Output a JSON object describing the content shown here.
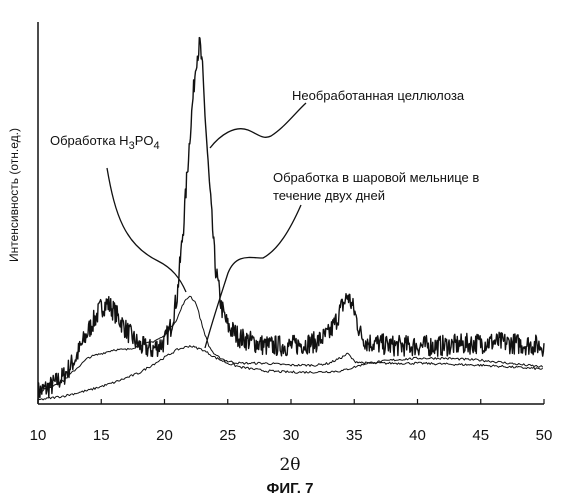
{
  "chart_data": {
    "type": "line",
    "x_label": "2θ",
    "y_label": "Интенсивность (отн.ед.)",
    "figure_caption": "ФИГ. 7",
    "xlim": [
      10,
      50
    ],
    "x_ticks": [
      10,
      15,
      20,
      25,
      30,
      35,
      40,
      45,
      50
    ],
    "grid": false,
    "legend": "none",
    "annotations": {
      "untreated": "Необработанная целлюлоза",
      "h3po4_prefix": "Обработка H",
      "h3po4_sub1": "3",
      "h3po4_mid": "PO",
      "h3po4_sub2": "4",
      "ballmill_line1": "Обработка в шаровой мельнице в",
      "ballmill_line2": "течение двух дней"
    },
    "series": [
      {
        "name": "Необработанная целлюлоза",
        "noisy": true,
        "x": [
          10,
          11,
          12,
          13,
          14,
          15,
          15.5,
          16,
          17,
          18,
          19,
          20,
          20.5,
          21,
          21.5,
          22,
          22.5,
          22.8,
          23,
          23.5,
          24,
          24.5,
          25,
          26,
          27,
          28,
          29,
          30,
          31,
          32,
          33,
          33.5,
          34,
          34.5,
          35,
          35.5,
          36,
          37,
          38,
          40,
          42,
          44,
          46,
          48,
          50
        ],
        "y": [
          2,
          3.5,
          6,
          11,
          18,
          24,
          25,
          23,
          18,
          14,
          13,
          15,
          19,
          27,
          45,
          68,
          88,
          92,
          85,
          58,
          35,
          24,
          19,
          16,
          15,
          14,
          14,
          14,
          14.5,
          15,
          17,
          20,
          24,
          27,
          23,
          17,
          15,
          14.5,
          14,
          14,
          14,
          14.5,
          15,
          14.5,
          14
        ]
      },
      {
        "name": "Обработка H3PO4",
        "noisy": false,
        "x": [
          10,
          12,
          13,
          14,
          15,
          16,
          17,
          18,
          19,
          20,
          21,
          21.5,
          22,
          22.5,
          23,
          23.5,
          24,
          25,
          26,
          28,
          30,
          32,
          33,
          34,
          34.5,
          35,
          36,
          38,
          40,
          45,
          50
        ],
        "y": [
          2,
          5,
          8,
          11,
          12,
          13,
          13,
          14,
          15,
          16.5,
          21,
          25,
          27,
          25,
          19,
          14,
          11.5,
          10,
          9.5,
          9.5,
          9,
          9,
          9.5,
          11,
          12,
          10,
          9.5,
          9.5,
          9.5,
          9,
          8
        ]
      },
      {
        "name": "Обработка в шаровой мельнице в течение двух дней",
        "noisy": false,
        "x": [
          10,
          12,
          14,
          16,
          18,
          19,
          20,
          21,
          22,
          23,
          24,
          25,
          26,
          28,
          30,
          32,
          34,
          35,
          36,
          38,
          40,
          42,
          45,
          50
        ],
        "y": [
          0,
          1,
          2.5,
          4.5,
          7,
          9,
          11,
          13,
          14,
          13,
          11,
          9.5,
          8.5,
          7.5,
          7.2,
          7.2,
          7.5,
          8.5,
          9.5,
          10.3,
          10.8,
          10.8,
          10.3,
          8.5
        ]
      }
    ]
  }
}
